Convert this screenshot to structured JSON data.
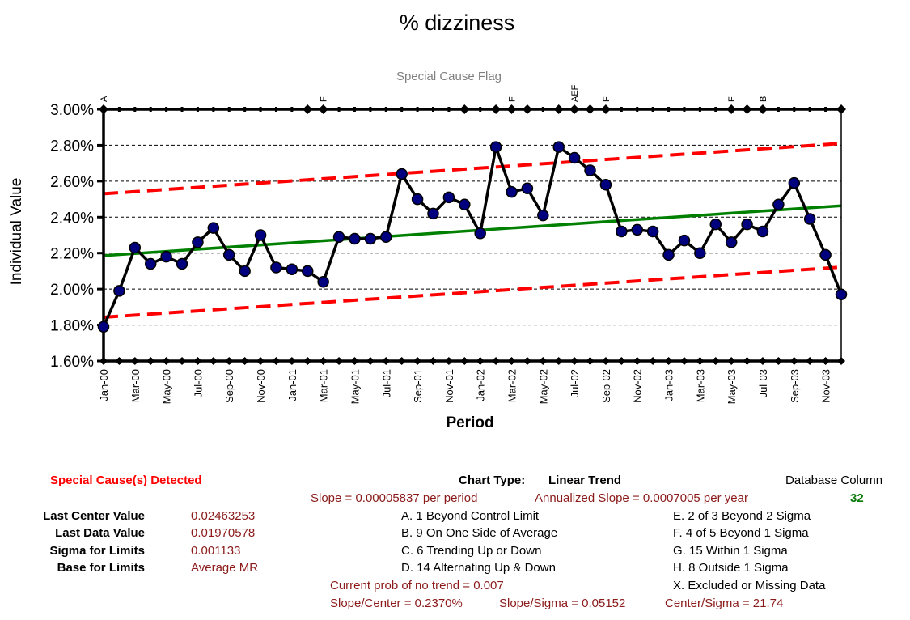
{
  "chart_data": {
    "type": "line",
    "title": "% dizziness",
    "subtitle": "Special Cause Flag",
    "xlabel": "Period",
    "ylabel": "Individual Value",
    "ylim": [
      0.016,
      0.03
    ],
    "yticks": [
      "1.60%",
      "1.80%",
      "2.00%",
      "2.20%",
      "2.40%",
      "2.60%",
      "2.80%",
      "3.00%"
    ],
    "x": [
      "Jan-00",
      "Feb-00",
      "Mar-00",
      "Apr-00",
      "May-00",
      "Jun-00",
      "Jul-00",
      "Aug-00",
      "Sep-00",
      "Oct-00",
      "Nov-00",
      "Dec-00",
      "Jan-01",
      "Feb-01",
      "Mar-01",
      "Apr-01",
      "May-01",
      "Jun-01",
      "Jul-01",
      "Aug-01",
      "Sep-01",
      "Oct-01",
      "Nov-01",
      "Dec-01",
      "Jan-02",
      "Feb-02",
      "Mar-02",
      "Apr-02",
      "May-02",
      "Jun-02",
      "Jul-02",
      "Aug-02",
      "Sep-02",
      "Oct-02",
      "Nov-02",
      "Dec-02",
      "Jan-03",
      "Feb-03",
      "Mar-03",
      "Apr-03",
      "May-03",
      "Jun-03",
      "Jul-03",
      "Aug-03",
      "Sep-03",
      "Oct-03",
      "Nov-03",
      "Dec-03"
    ],
    "x_tick_labels": [
      "Jan-00",
      "Mar-00",
      "May-00",
      "Jul-00",
      "Sep-00",
      "Nov-00",
      "Jan-01",
      "Mar-01",
      "May-01",
      "Jul-01",
      "Sep-01",
      "Nov-01",
      "Jan-02",
      "Mar-02",
      "May-02",
      "Jul-02",
      "Sep-02",
      "Nov-02",
      "Jan-03",
      "Mar-03",
      "May-03",
      "Jul-03",
      "Sep-03",
      "Nov-03"
    ],
    "grid": "horizontal dashed",
    "series": [
      {
        "values": [
          0.0179,
          0.0199,
          0.0223,
          0.0214,
          0.0218,
          0.0214,
          0.0226,
          0.0234,
          0.0219,
          0.021,
          0.023,
          0.0212,
          0.0211,
          0.021,
          0.0204,
          0.0229,
          0.0228,
          0.0228,
          0.0229,
          0.0264,
          0.025,
          0.0242,
          0.0251,
          0.0247,
          0.0231,
          0.0279,
          0.0254,
          0.0256,
          0.0241,
          0.0279,
          0.0273,
          0.0266,
          0.0258,
          0.0232,
          0.0233,
          0.0232,
          0.0219,
          0.0227,
          0.022,
          0.0236,
          0.0226,
          0.0236,
          0.0232,
          0.0247,
          0.0259,
          0.0239,
          0.0219,
          0.0197
        ],
        "color": "#000000",
        "marker_color": "#00007f"
      },
      {
        "start": 0.02186,
        "end": 0.02463253,
        "color": "#008000",
        "style": "solid"
      },
      {
        "start": 0.0253,
        "end": 0.0281,
        "color": "#ff0000",
        "style": "dashed"
      },
      {
        "start": 0.01843,
        "end": 0.02122,
        "color": "#ff0000",
        "style": "dashed"
      }
    ],
    "flags": [
      {
        "period": "Jan-00",
        "label": "A"
      },
      {
        "period": "Feb-01",
        "label": ""
      },
      {
        "period": "Mar-01",
        "label": "F"
      },
      {
        "period": "Dec-01",
        "label": ""
      },
      {
        "period": "Feb-02",
        "label": ""
      },
      {
        "period": "Mar-02",
        "label": "F"
      },
      {
        "period": "Apr-02",
        "label": ""
      },
      {
        "period": "Jun-02",
        "label": ""
      },
      {
        "period": "Jul-02",
        "label": "AEF"
      },
      {
        "period": "Aug-02",
        "label": ""
      },
      {
        "period": "Sep-02",
        "label": "F"
      },
      {
        "period": "May-03",
        "label": "F"
      },
      {
        "period": "Jun-03",
        "label": ""
      },
      {
        "period": "Jul-03",
        "label": "B"
      },
      {
        "period": "Dec-03",
        "label": ""
      }
    ]
  },
  "footer": {
    "special_cause": "Special Cause(s) Detected",
    "chart_type_label": "Chart Type:",
    "chart_type_value": "Linear Trend",
    "database_column_label": "Database Column",
    "database_column_value": "32",
    "slope": "Slope = 0.00005837 per period",
    "annualized_slope": "Annualized Slope = 0.0007005 per year",
    "stats": [
      {
        "label": "Last Center Value",
        "value": "0.02463253"
      },
      {
        "label": "Last Data Value",
        "value": "0.01970578"
      },
      {
        "label": "Sigma for Limits",
        "value": "0.001133"
      },
      {
        "label": "Base for Limits",
        "value": "Average MR"
      }
    ],
    "rules_left": [
      "A. 1 Beyond Control Limit",
      "B. 9 On One Side of Average",
      "C. 6 Trending Up or Down",
      "D. 14 Alternating  Up & Down"
    ],
    "rules_right": [
      "E.  2 of 3 Beyond 2 Sigma",
      "F.  4 of 5 Beyond 1 Sigma",
      "G.  15 Within 1 Sigma",
      "H.  8 Outside 1 Sigma",
      "X.  Excluded or Missing Data"
    ],
    "prob_no_trend": "Current prob of no trend = 0.007",
    "slope_center": "Slope/Center = 0.2370%",
    "slope_sigma": "Slope/Sigma = 0.05152",
    "center_sigma": "Center/Sigma = 21.74"
  }
}
